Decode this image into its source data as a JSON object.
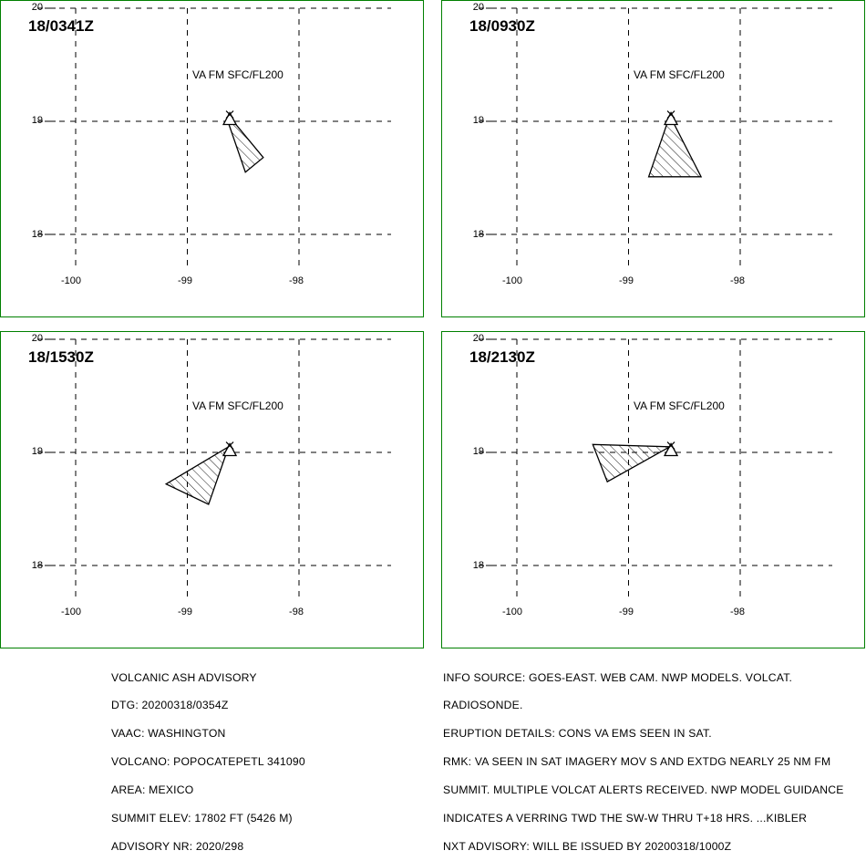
{
  "panels": [
    {
      "time": "18/0341Z",
      "label": "VA FM SFC/FL200",
      "polygon": [
        [
          -98.63,
          19.05
        ],
        [
          -98.32,
          18.68
        ],
        [
          -98.48,
          18.55
        ],
        [
          -98.63,
          18.98
        ]
      ]
    },
    {
      "time": "18/0930Z",
      "label": "VA FM SFC/FL200",
      "polygon": [
        [
          -98.63,
          19.05
        ],
        [
          -98.35,
          18.51
        ],
        [
          -98.82,
          18.51
        ]
      ]
    },
    {
      "time": "18/1530Z",
      "label": "VA FM SFC/FL200",
      "polygon": [
        [
          -98.63,
          19.05
        ],
        [
          -98.81,
          18.54
        ],
        [
          -99.19,
          18.72
        ]
      ]
    },
    {
      "time": "18/2130Z",
      "label": "VA FM SFC/FL200",
      "polygon": [
        [
          -98.63,
          19.05
        ],
        [
          -99.19,
          18.74
        ],
        [
          -99.32,
          19.07
        ]
      ]
    }
  ],
  "axes": {
    "lat_ticks": [
      "20",
      "19",
      "18"
    ],
    "lon_ticks": [
      "-100",
      "-99",
      "-98"
    ]
  },
  "volcano_symbol": "volcano-triangle-icon",
  "advisory_left": [
    "VOLCANIC ASH ADVISORY",
    "DTG: 20200318/0354Z",
    "VAAC: WASHINGTON",
    "VOLCANO: POPOCATEPETL 341090",
    "AREA: MEXICO",
    "SUMMIT ELEV: 17802 FT (5426 M)",
    "ADVISORY NR: 2020/298"
  ],
  "advisory_right": [
    "INFO SOURCE: GOES-EAST. WEB CAM. NWP MODELS. VOLCAT.",
    "RADIOSONDE.",
    "ERUPTION DETAILS: CONS VA EMS SEEN IN SAT.",
    "RMK: VA SEEN IN SAT IMAGERY MOV S AND EXTDG NEARLY 25 NM FM",
    "SUMMIT. MULTIPLE VOLCAT ALERTS RECEIVED. NWP MODEL GUIDANCE",
    "INDICATES A VERRING TWD THE SW-W THRU T+18 HRS. ...KIBLER",
    "NXT ADVISORY: WILL BE ISSUED BY 20200318/1000Z"
  ],
  "colors": {
    "frame": "#008000",
    "grid": "#000000",
    "polygon": "#000000"
  }
}
